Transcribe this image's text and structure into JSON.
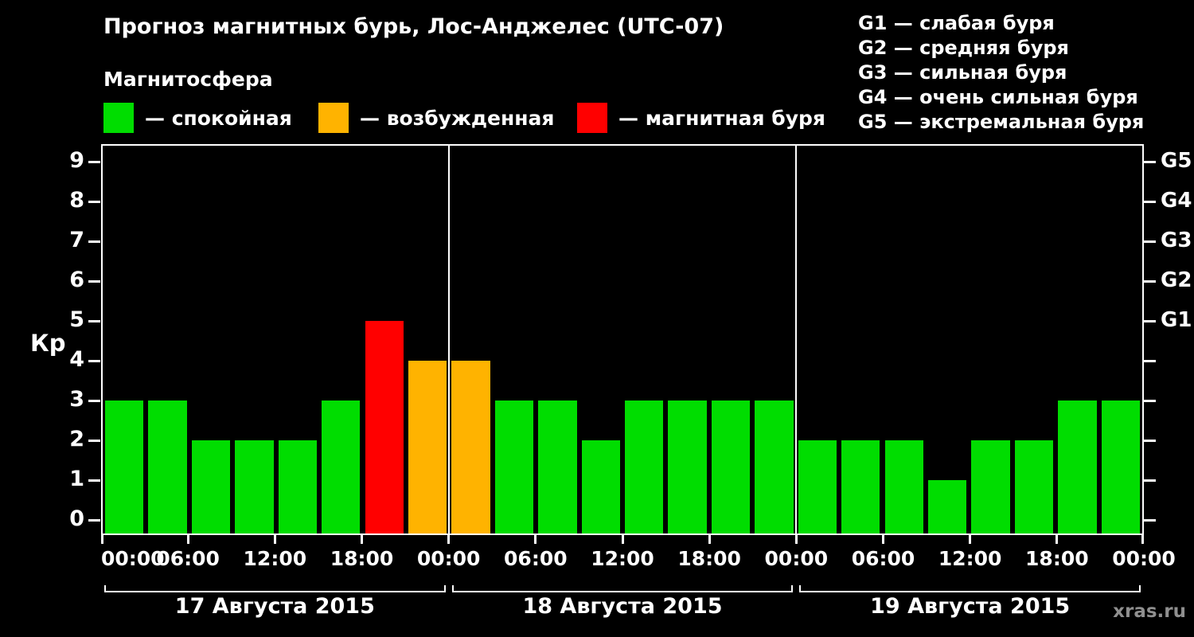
{
  "watermark": "xras.ru",
  "chart_data": {
    "type": "bar",
    "title": "Прогноз магнитных бурь, Лос-Анджелес (UTC-07)",
    "subtitle": "Магнитосфера",
    "ylabel": "Кр",
    "ylim": [
      0,
      9
    ],
    "yticks": [
      0,
      1,
      2,
      3,
      4,
      5,
      6,
      7,
      8,
      9
    ],
    "bar_interval_hours": 3,
    "x_tick_labels": [
      "00:00",
      "06:00",
      "12:00",
      "18:00",
      "00:00",
      "06:00",
      "12:00",
      "18:00",
      "00:00",
      "06:00",
      "12:00",
      "18:00",
      "00:00"
    ],
    "right_axis_labels": [
      {
        "value": 5,
        "label": "G1"
      },
      {
        "value": 6,
        "label": "G2"
      },
      {
        "value": 7,
        "label": "G3"
      },
      {
        "value": 8,
        "label": "G4"
      },
      {
        "value": 9,
        "label": "G5"
      }
    ],
    "legend": [
      {
        "name": "quiet",
        "label": "— спокойная",
        "color": "#00dd00"
      },
      {
        "name": "unsettled",
        "label": "— возбужденная",
        "color": "#ffb300"
      },
      {
        "name": "storm",
        "label": "— магнитная буря",
        "color": "#ff0000"
      }
    ],
    "g_descriptions": [
      "G1 — слабая буря",
      "G2 — средняя буря",
      "G3 — сильная буря",
      "G4 — очень сильная буря",
      "G5 — экстремальная буря"
    ],
    "days": [
      {
        "date": "17 Августа 2015",
        "values": [
          3,
          3,
          2,
          2,
          2,
          3,
          5,
          4
        ]
      },
      {
        "date": "18 Августа 2015",
        "values": [
          4,
          3,
          3,
          2,
          3,
          3,
          3,
          3
        ]
      },
      {
        "date": "19 Августа 2015",
        "values": [
          2,
          2,
          2,
          1,
          2,
          2,
          3,
          3
        ]
      }
    ],
    "color_rules": {
      "quiet_max_kp": 3,
      "unsettled_kp": 4,
      "storm_min_kp": 5
    },
    "colors": {
      "quiet": "#00dd00",
      "unsettled": "#ffb300",
      "storm": "#ff0000"
    },
    "grid": "day-separators",
    "legend_position": "top"
  }
}
